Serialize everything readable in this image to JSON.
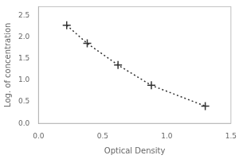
{
  "chart_data": {
    "type": "line",
    "x": [
      0.22,
      0.38,
      0.62,
      0.88,
      1.3
    ],
    "values": [
      2.27,
      1.85,
      1.35,
      0.88,
      0.4
    ],
    "xlabel": "Optical Density",
    "ylabel": "Log. of concentration",
    "xlim": [
      0,
      1.5
    ],
    "ylim": [
      0,
      2.7
    ],
    "xticks": [
      {
        "value": 0,
        "label": "0.0"
      },
      {
        "value": 0.5,
        "label": "0.5"
      },
      {
        "value": 1.0,
        "label": "1.0"
      },
      {
        "value": 1.5,
        "label": "1.5"
      }
    ],
    "yticks": [
      {
        "value": 0,
        "label": "0.0"
      },
      {
        "value": 0.5,
        "label": "0.5"
      },
      {
        "value": 1.0,
        "label": "1.0"
      },
      {
        "value": 1.5,
        "label": "1.5"
      },
      {
        "value": 2.0,
        "label": "2.0"
      },
      {
        "value": 2.5,
        "label": "2.5"
      }
    ],
    "color": "#333333",
    "marker": "plus",
    "line_style": "dotted",
    "grid": false
  }
}
